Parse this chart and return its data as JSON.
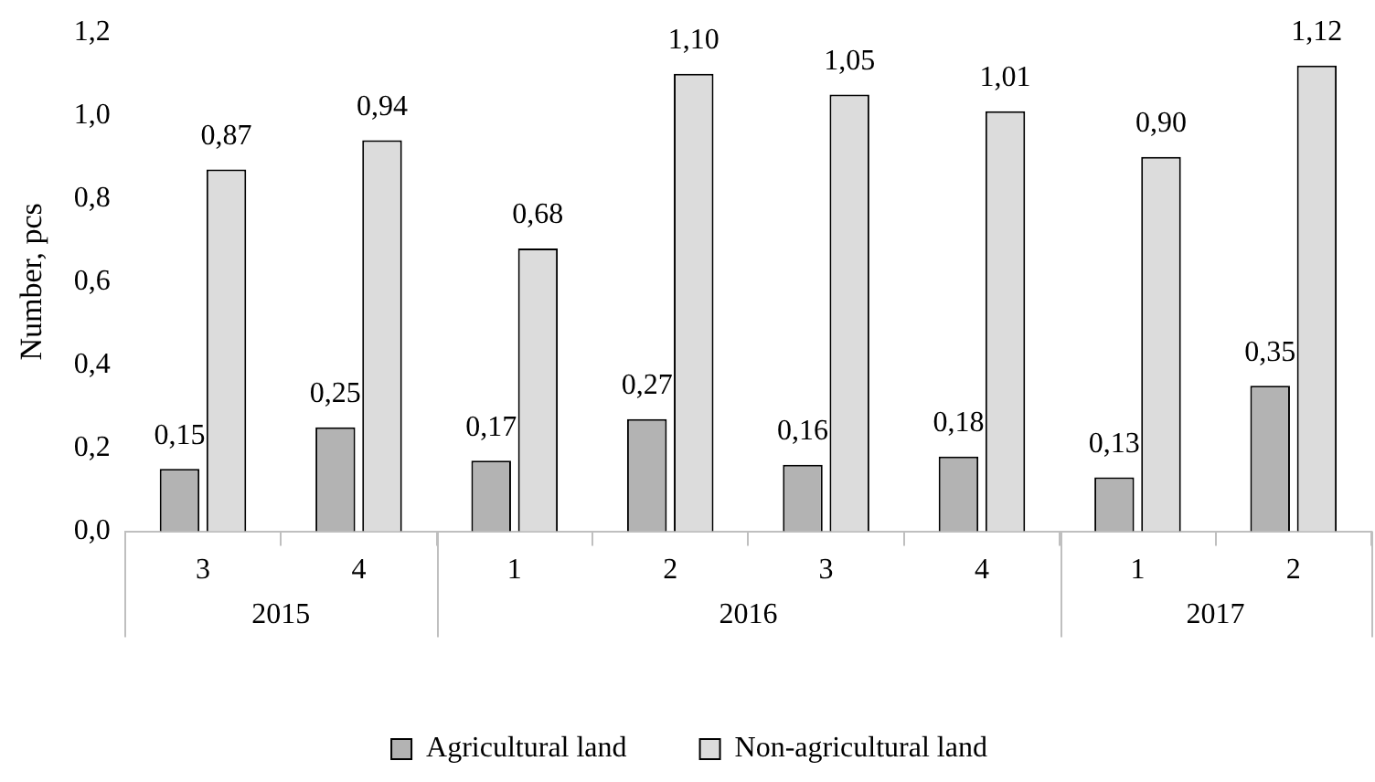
{
  "chart_data": {
    "type": "bar",
    "ylabel": "Number, pcs",
    "categories": [
      "3",
      "4",
      "1",
      "2",
      "3",
      "4",
      "1",
      "2"
    ],
    "annotations": [
      "2015",
      "2016",
      "2017"
    ],
    "series": [
      {
        "name": "Agricultural land",
        "color": "#b3b3b3",
        "values": [
          0.15,
          0.25,
          0.17,
          0.27,
          0.16,
          0.18,
          0.13,
          0.35
        ],
        "value_labels": [
          "0,15",
          "0,25",
          "0,17",
          "0,27",
          "0,16",
          "0,18",
          "0,13",
          "0,35"
        ]
      },
      {
        "name": "Non-agricultural land",
        "color": "#dcdcdc",
        "values": [
          0.87,
          0.94,
          0.68,
          1.1,
          1.05,
          1.01,
          0.9,
          1.12
        ],
        "value_labels": [
          "0,87",
          "0,94",
          "0,68",
          "1,10",
          "1,05",
          "1,01",
          "0,90",
          "1,12"
        ]
      }
    ],
    "ylim": [
      0,
      1.2
    ],
    "yticks": [
      {
        "value": 0,
        "label": "0,0"
      },
      {
        "value": 0.2,
        "label": "0,2"
      },
      {
        "value": 0.4,
        "label": "0,4"
      },
      {
        "value": 0.6,
        "label": "0,6"
      },
      {
        "value": 0.8,
        "label": "0,8"
      },
      {
        "value": 1.0,
        "label": "1,0"
      },
      {
        "value": 1.2,
        "label": "1,2"
      }
    ],
    "grid": false,
    "legend": "bottom"
  }
}
